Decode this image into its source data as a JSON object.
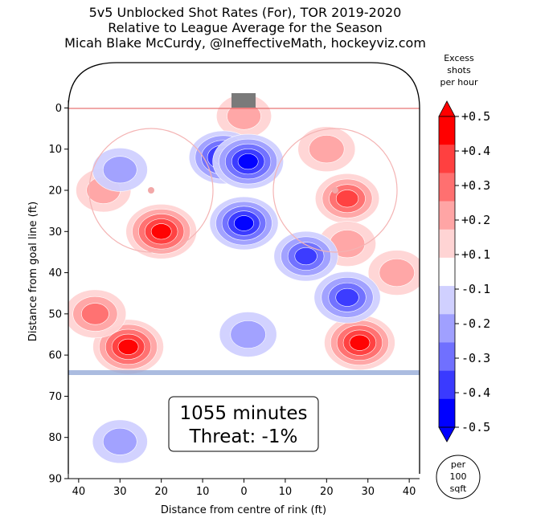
{
  "header": {
    "title_line1": "5v5 Unblocked Shot Rates (For), TOR 2019-2020",
    "title_line2": "Relative to League Average for the Season",
    "title_line3": "Micah Blake McCurdy, @IneffectiveMath, hockeyviz.com"
  },
  "info_box": {
    "minutes": "1055 minutes",
    "threat": "Threat: -1%"
  },
  "unit_badge": {
    "line1": "per",
    "line2": "100",
    "line3": "sqft"
  },
  "colorbar": {
    "title_line1": "Excess",
    "title_line2": "shots",
    "title_line3": "per hour",
    "ticks": [
      "+0.5",
      "+0.4",
      "+0.3",
      "+0.2",
      "+0.1",
      "-0.1",
      "-0.2",
      "-0.3",
      "-0.4",
      "-0.5"
    ],
    "colors": [
      "#ff0000",
      "#ff4040",
      "#ff7070",
      "#ffa5a5",
      "#ffd4d4",
      "#ffffff",
      "#d0d0ff",
      "#a0a0ff",
      "#7070ff",
      "#3a3aff",
      "#0000ff"
    ]
  },
  "chart_data": {
    "type": "heatmap",
    "xlabel": "Distance from centre of rink (ft)",
    "ylabel": "Distance from goal line (ft)",
    "x_ticks": [
      "40",
      "30",
      "20",
      "10",
      "0",
      "10",
      "20",
      "30",
      "40"
    ],
    "x_tick_values": [
      -40,
      -30,
      -20,
      -10,
      0,
      10,
      20,
      30,
      40
    ],
    "y_ticks": [
      "0",
      "10",
      "20",
      "30",
      "40",
      "50",
      "60",
      "70",
      "80",
      "90"
    ],
    "y_tick_values": [
      0,
      10,
      20,
      30,
      40,
      50,
      60,
      70,
      80,
      90
    ],
    "xlim": [
      -42.5,
      42.5
    ],
    "ylim": [
      90,
      -11
    ],
    "levels": [
      -0.5,
      -0.4,
      -0.3,
      -0.2,
      -0.1,
      0.1,
      0.2,
      0.3,
      0.4,
      0.5
    ],
    "hotspots": [
      {
        "x": -28,
        "y": 58,
        "peak": 0.5
      },
      {
        "x": -36,
        "y": 50,
        "peak": 0.3
      },
      {
        "x": -20,
        "y": 30,
        "peak": 0.5
      },
      {
        "x": 28,
        "y": 57,
        "peak": 0.5
      },
      {
        "x": 25,
        "y": 22,
        "peak": 0.35
      },
      {
        "x": 25,
        "y": 33,
        "peak": 0.2
      },
      {
        "x": 20,
        "y": 10,
        "peak": 0.2
      },
      {
        "x": 37,
        "y": 40,
        "peak": 0.2
      },
      {
        "x": 0,
        "y": 2,
        "peak": 0.15
      },
      {
        "x": -34,
        "y": 20,
        "peak": 0.15
      },
      {
        "x": -5,
        "y": 12,
        "peak": -0.45
      },
      {
        "x": 1,
        "y": 13,
        "peak": -0.5
      },
      {
        "x": 0,
        "y": 28,
        "peak": -0.45
      },
      {
        "x": 15,
        "y": 36,
        "peak": -0.35
      },
      {
        "x": 25,
        "y": 46,
        "peak": -0.4
      },
      {
        "x": 1,
        "y": 55,
        "peak": -0.2
      },
      {
        "x": -30,
        "y": 15,
        "peak": -0.15
      },
      {
        "x": -30,
        "y": 81,
        "peak": -0.15
      }
    ]
  }
}
